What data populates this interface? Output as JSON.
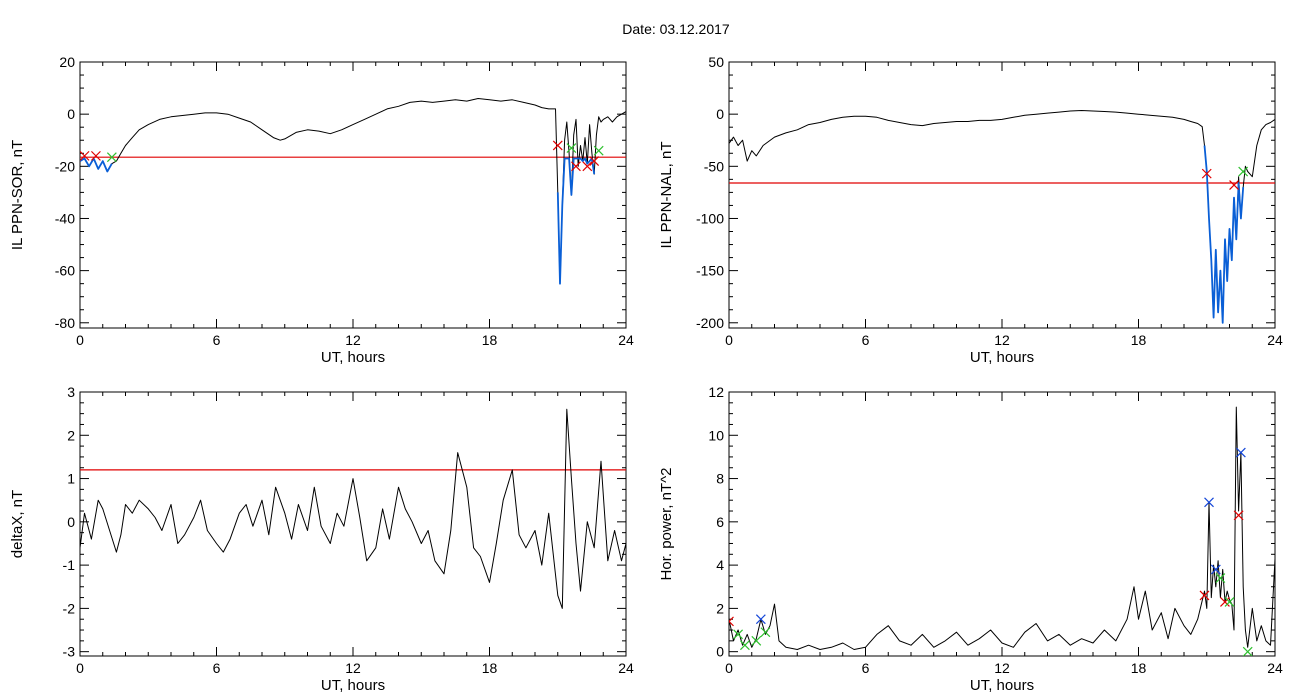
{
  "figure": {
    "title": "Date:  03.12.2017",
    "colors": {
      "data": "#000000",
      "threshold": "#e00000",
      "highlight": "#0a5fd6",
      "marker_red": "#e00000",
      "marker_green": "#2ec02e",
      "marker_blue": "#1446d8"
    }
  },
  "chart_data": [
    {
      "id": "il-sor",
      "type": "line",
      "xlabel": "UT, hours",
      "ylabel": "IL PPN-SOR, nT",
      "xlim": [
        0,
        24
      ],
      "ylim": [
        -82,
        20
      ],
      "xticks": [
        0,
        6,
        12,
        18,
        24
      ],
      "yticks": [
        20,
        0,
        -20,
        -40,
        -60,
        -80
      ],
      "threshold": -16.5,
      "series": [
        {
          "style": "black",
          "x": [
            0,
            0.2,
            0.4,
            0.6,
            0.8,
            1.0,
            1.2,
            1.4,
            1.6,
            1.8,
            2.0,
            2.3,
            2.6,
            3.0,
            3.5,
            4.0,
            4.5,
            5.0,
            5.5,
            6.0,
            6.5,
            7.0,
            7.5,
            8.0,
            8.5,
            8.8,
            9.0,
            9.5,
            10.0,
            10.5,
            11.0,
            11.5,
            12.0,
            12.5,
            13.0,
            13.5,
            14.0,
            14.5,
            15.0,
            15.5,
            16.0,
            16.5,
            17.0,
            17.5,
            18.0,
            18.5,
            19.0,
            19.5,
            20.0,
            20.3,
            20.6,
            20.9,
            21.0,
            21.1,
            21.2,
            21.3,
            21.4,
            21.5,
            21.6,
            21.7,
            21.8,
            21.9,
            22.0,
            22.1,
            22.2,
            22.3,
            22.4,
            22.5,
            22.6,
            22.7,
            22.8,
            22.9,
            23.0,
            23.2,
            23.4,
            23.6,
            23.8,
            24.0
          ],
          "y": [
            -18,
            -17,
            -20,
            -17,
            -21,
            -18,
            -22,
            -19,
            -18,
            -15,
            -12,
            -9,
            -6,
            -4,
            -2,
            -1,
            -0.5,
            0,
            0.5,
            0.5,
            0,
            -1.5,
            -3,
            -6,
            -9,
            -10,
            -9.5,
            -7,
            -6,
            -6.5,
            -7.5,
            -6,
            -4,
            -2,
            0,
            2,
            3,
            4.5,
            5,
            4.5,
            5,
            5.5,
            5,
            6,
            5.5,
            5,
            5.5,
            4.5,
            3.5,
            2.5,
            2,
            2,
            -30,
            -65,
            -35,
            -10,
            -3,
            -15,
            -31,
            -8,
            -2,
            -20,
            -12,
            -18,
            -9,
            -19,
            -4,
            -15,
            -23,
            -8,
            -1,
            -3,
            -2,
            -1,
            -3,
            -1,
            0,
            1
          ]
        },
        {
          "style": "highlight",
          "x": [
            0,
            0.2,
            0.4,
            0.6,
            0.8,
            1.0,
            1.2,
            1.4
          ],
          "y": [
            -18,
            -17,
            -20,
            -17,
            -21,
            -18,
            -22,
            -19
          ]
        },
        {
          "style": "highlight",
          "x": [
            21.0,
            21.1,
            21.2,
            21.3,
            21.5,
            21.6,
            21.7,
            22.0,
            22.1,
            22.2,
            22.3,
            22.5,
            22.6
          ],
          "y": [
            -30,
            -65,
            -35,
            -17,
            -17,
            -31,
            -17,
            -17,
            -18,
            -17,
            -19,
            -17,
            -23
          ]
        }
      ],
      "markers": [
        {
          "color": "red",
          "x": 0.2,
          "y": -16
        },
        {
          "color": "red",
          "x": 0.7,
          "y": -16
        },
        {
          "color": "green",
          "x": 1.4,
          "y": -16.5
        },
        {
          "color": "red",
          "x": 21.0,
          "y": -12
        },
        {
          "color": "green",
          "x": 21.6,
          "y": -13
        },
        {
          "color": "red",
          "x": 21.8,
          "y": -20
        },
        {
          "color": "red",
          "x": 22.3,
          "y": -20
        },
        {
          "color": "red",
          "x": 22.6,
          "y": -18
        },
        {
          "color": "green",
          "x": 22.8,
          "y": -14
        }
      ]
    },
    {
      "id": "il-nal",
      "type": "line",
      "xlabel": "UT, hours",
      "ylabel": "IL PPN-NAL, nT",
      "xlim": [
        0,
        24
      ],
      "ylim": [
        -205,
        50
      ],
      "xticks": [
        0,
        6,
        12,
        18,
        24
      ],
      "yticks": [
        50,
        0,
        -50,
        -100,
        -150,
        -200
      ],
      "threshold": -66,
      "series": [
        {
          "style": "black",
          "x": [
            0,
            0.2,
            0.4,
            0.6,
            0.8,
            1.0,
            1.2,
            1.5,
            2.0,
            2.5,
            3.0,
            3.5,
            4.0,
            4.5,
            5.0,
            5.5,
            6.0,
            6.5,
            7.0,
            7.5,
            8.0,
            8.5,
            9.0,
            9.5,
            10.0,
            10.5,
            11.0,
            11.5,
            12.0,
            12.5,
            13.0,
            13.5,
            14.0,
            14.5,
            15.0,
            15.5,
            16.0,
            16.5,
            17.0,
            17.5,
            18.0,
            18.5,
            19.0,
            19.5,
            20.0,
            20.3,
            20.6,
            20.8,
            20.9,
            21.0,
            21.1,
            21.2,
            21.3,
            21.4,
            21.5,
            21.6,
            21.7,
            21.8,
            21.9,
            22.0,
            22.1,
            22.2,
            22.3,
            22.4,
            22.5,
            22.6,
            22.7,
            22.8,
            23.0,
            23.2,
            23.4,
            23.6,
            23.8,
            24.0
          ],
          "y": [
            -28,
            -22,
            -30,
            -25,
            -45,
            -35,
            -40,
            -30,
            -22,
            -18,
            -15,
            -10,
            -8,
            -5,
            -3,
            -2,
            -2,
            -3,
            -6,
            -8,
            -10,
            -11,
            -9,
            -8,
            -7,
            -7,
            -6,
            -6,
            -5,
            -3,
            -1,
            0,
            1,
            2,
            3,
            3.5,
            3,
            2.5,
            2,
            1,
            0,
            -1,
            -2,
            -3,
            -5,
            -7,
            -9,
            -12,
            -30,
            -55,
            -100,
            -140,
            -195,
            -130,
            -190,
            -150,
            -200,
            -120,
            -160,
            -110,
            -140,
            -80,
            -120,
            -60,
            -100,
            -70,
            -50,
            -55,
            -60,
            -30,
            -15,
            -10,
            -8,
            -5
          ]
        },
        {
          "style": "highlight",
          "x": [
            20.9,
            21.0,
            21.1,
            21.2,
            21.3,
            21.4,
            21.5,
            21.6,
            21.7,
            21.8,
            21.9,
            22.0,
            22.1,
            22.2,
            22.3,
            22.4,
            22.5,
            22.6
          ],
          "y": [
            -30,
            -55,
            -100,
            -140,
            -195,
            -130,
            -190,
            -150,
            -200,
            -120,
            -160,
            -110,
            -140,
            -80,
            -120,
            -66,
            -100,
            -70
          ]
        }
      ],
      "markers": [
        {
          "color": "red",
          "x": 21.0,
          "y": -57
        },
        {
          "color": "red",
          "x": 22.2,
          "y": -68
        },
        {
          "color": "green",
          "x": 22.6,
          "y": -55
        }
      ]
    },
    {
      "id": "deltax",
      "type": "line",
      "xlabel": "UT, hours",
      "ylabel": "deltaX, nT",
      "xlim": [
        0,
        24
      ],
      "ylim": [
        -3.1,
        3
      ],
      "xticks": [
        0,
        6,
        12,
        18,
        24
      ],
      "yticks": [
        3,
        2,
        1,
        0,
        -1,
        -2,
        -3
      ],
      "threshold": 1.2,
      "series": [
        {
          "style": "black",
          "x": [
            0,
            0.2,
            0.5,
            0.8,
            1.0,
            1.3,
            1.6,
            1.8,
            2.0,
            2.3,
            2.6,
            3.0,
            3.3,
            3.6,
            4.0,
            4.3,
            4.6,
            5.0,
            5.3,
            5.6,
            6.0,
            6.3,
            6.6,
            7.0,
            7.3,
            7.6,
            8.0,
            8.3,
            8.6,
            9.0,
            9.3,
            9.6,
            10.0,
            10.3,
            10.6,
            11.0,
            11.3,
            11.6,
            12.0,
            12.3,
            12.6,
            13.0,
            13.3,
            13.6,
            14.0,
            14.3,
            14.6,
            15.0,
            15.3,
            15.6,
            16.0,
            16.3,
            16.6,
            17.0,
            17.3,
            17.6,
            18.0,
            18.3,
            18.6,
            19.0,
            19.3,
            19.6,
            20.0,
            20.3,
            20.6,
            21.0,
            21.2,
            21.4,
            21.6,
            21.8,
            22.0,
            22.3,
            22.6,
            22.9,
            23.2,
            23.5,
            23.8,
            24.0
          ],
          "y": [
            -0.6,
            0.2,
            -0.4,
            0.5,
            0.3,
            -0.2,
            -0.7,
            -0.3,
            0.4,
            0.2,
            0.5,
            0.3,
            0.1,
            -0.2,
            0.4,
            -0.5,
            -0.3,
            0.1,
            0.5,
            -0.2,
            -0.5,
            -0.7,
            -0.4,
            0.2,
            0.4,
            -0.1,
            0.5,
            -0.3,
            0.8,
            0.2,
            -0.4,
            0.4,
            -0.2,
            0.8,
            -0.1,
            -0.5,
            0.2,
            -0.1,
            1.0,
            0.1,
            -0.9,
            -0.6,
            0.3,
            -0.4,
            0.8,
            0.3,
            0.0,
            -0.5,
            -0.2,
            -0.9,
            -1.2,
            -0.2,
            1.6,
            0.8,
            -0.6,
            -0.8,
            -1.4,
            -0.5,
            0.5,
            1.2,
            -0.3,
            -0.6,
            -0.2,
            -1.0,
            0.2,
            -1.7,
            -2.0,
            2.6,
            1.0,
            -0.5,
            -1.6,
            0.0,
            -0.6,
            1.4,
            -0.9,
            -0.2,
            -0.9,
            -0.5
          ]
        }
      ],
      "markers": []
    },
    {
      "id": "hor-power",
      "type": "line",
      "xlabel": "UT, hours",
      "ylabel": "Hor. power, nT^2",
      "xlim": [
        0,
        24
      ],
      "ylim": [
        -0.2,
        12
      ],
      "xticks": [
        0,
        6,
        12,
        18,
        24
      ],
      "yticks": [
        12,
        10,
        8,
        6,
        4,
        2,
        0
      ],
      "threshold": null,
      "series": [
        {
          "style": "black",
          "x": [
            0,
            0.2,
            0.4,
            0.6,
            0.8,
            1.0,
            1.2,
            1.4,
            1.6,
            1.8,
            2.0,
            2.2,
            2.5,
            3.0,
            3.5,
            4.0,
            4.5,
            5.0,
            5.5,
            6.0,
            6.5,
            7.0,
            7.5,
            8.0,
            8.5,
            9.0,
            9.5,
            10.0,
            10.5,
            11.0,
            11.5,
            12.0,
            12.5,
            13.0,
            13.5,
            14.0,
            14.5,
            15.0,
            15.5,
            16.0,
            16.5,
            17.0,
            17.5,
            17.8,
            18.0,
            18.3,
            18.6,
            19.0,
            19.3,
            19.6,
            20.0,
            20.3,
            20.6,
            20.9,
            21.0,
            21.1,
            21.2,
            21.3,
            21.4,
            21.5,
            21.6,
            21.7,
            21.8,
            21.9,
            22.0,
            22.1,
            22.2,
            22.3,
            22.4,
            22.5,
            22.6,
            22.7,
            22.8,
            23.0,
            23.2,
            23.4,
            23.6,
            23.8,
            24.0
          ],
          "y": [
            1.5,
            0.5,
            1.0,
            0.3,
            0.8,
            0.2,
            0.6,
            1.5,
            0.8,
            1.2,
            2.2,
            0.5,
            0.2,
            0.1,
            0.3,
            0.1,
            0.2,
            0.4,
            0.1,
            0.2,
            0.8,
            1.2,
            0.5,
            0.3,
            0.8,
            0.2,
            0.5,
            0.9,
            0.3,
            0.6,
            1.0,
            0.4,
            0.2,
            0.9,
            1.3,
            0.5,
            0.8,
            0.3,
            0.6,
            0.4,
            1.0,
            0.5,
            1.5,
            3.0,
            1.5,
            2.8,
            1.0,
            1.8,
            0.6,
            2.0,
            1.2,
            0.8,
            1.5,
            2.8,
            2.0,
            6.9,
            2.5,
            4.0,
            3.0,
            4.2,
            2.5,
            3.8,
            2.3,
            2.8,
            2.4,
            2.2,
            1.0,
            11.3,
            6.5,
            9.2,
            3.0,
            1.0,
            0.2,
            2.0,
            0.5,
            1.2,
            0.5,
            0.3,
            4.3
          ]
        }
      ],
      "markers": [
        {
          "color": "red",
          "x": 0.0,
          "y": 1.4
        },
        {
          "color": "green",
          "x": 0.4,
          "y": 0.8
        },
        {
          "color": "green",
          "x": 0.7,
          "y": 0.3
        },
        {
          "color": "green",
          "x": 1.2,
          "y": 0.5
        },
        {
          "color": "blue",
          "x": 1.4,
          "y": 1.5
        },
        {
          "color": "green",
          "x": 1.6,
          "y": 0.9
        },
        {
          "color": "red",
          "x": 20.9,
          "y": 2.6
        },
        {
          "color": "blue",
          "x": 21.1,
          "y": 6.9
        },
        {
          "color": "blue",
          "x": 21.4,
          "y": 3.8
        },
        {
          "color": "green",
          "x": 21.6,
          "y": 3.4
        },
        {
          "color": "red",
          "x": 21.8,
          "y": 2.3
        },
        {
          "color": "green",
          "x": 22.0,
          "y": 2.3
        },
        {
          "color": "red",
          "x": 22.4,
          "y": 6.3
        },
        {
          "color": "blue",
          "x": 22.5,
          "y": 9.2
        },
        {
          "color": "green",
          "x": 22.8,
          "y": 0.0
        }
      ]
    }
  ]
}
